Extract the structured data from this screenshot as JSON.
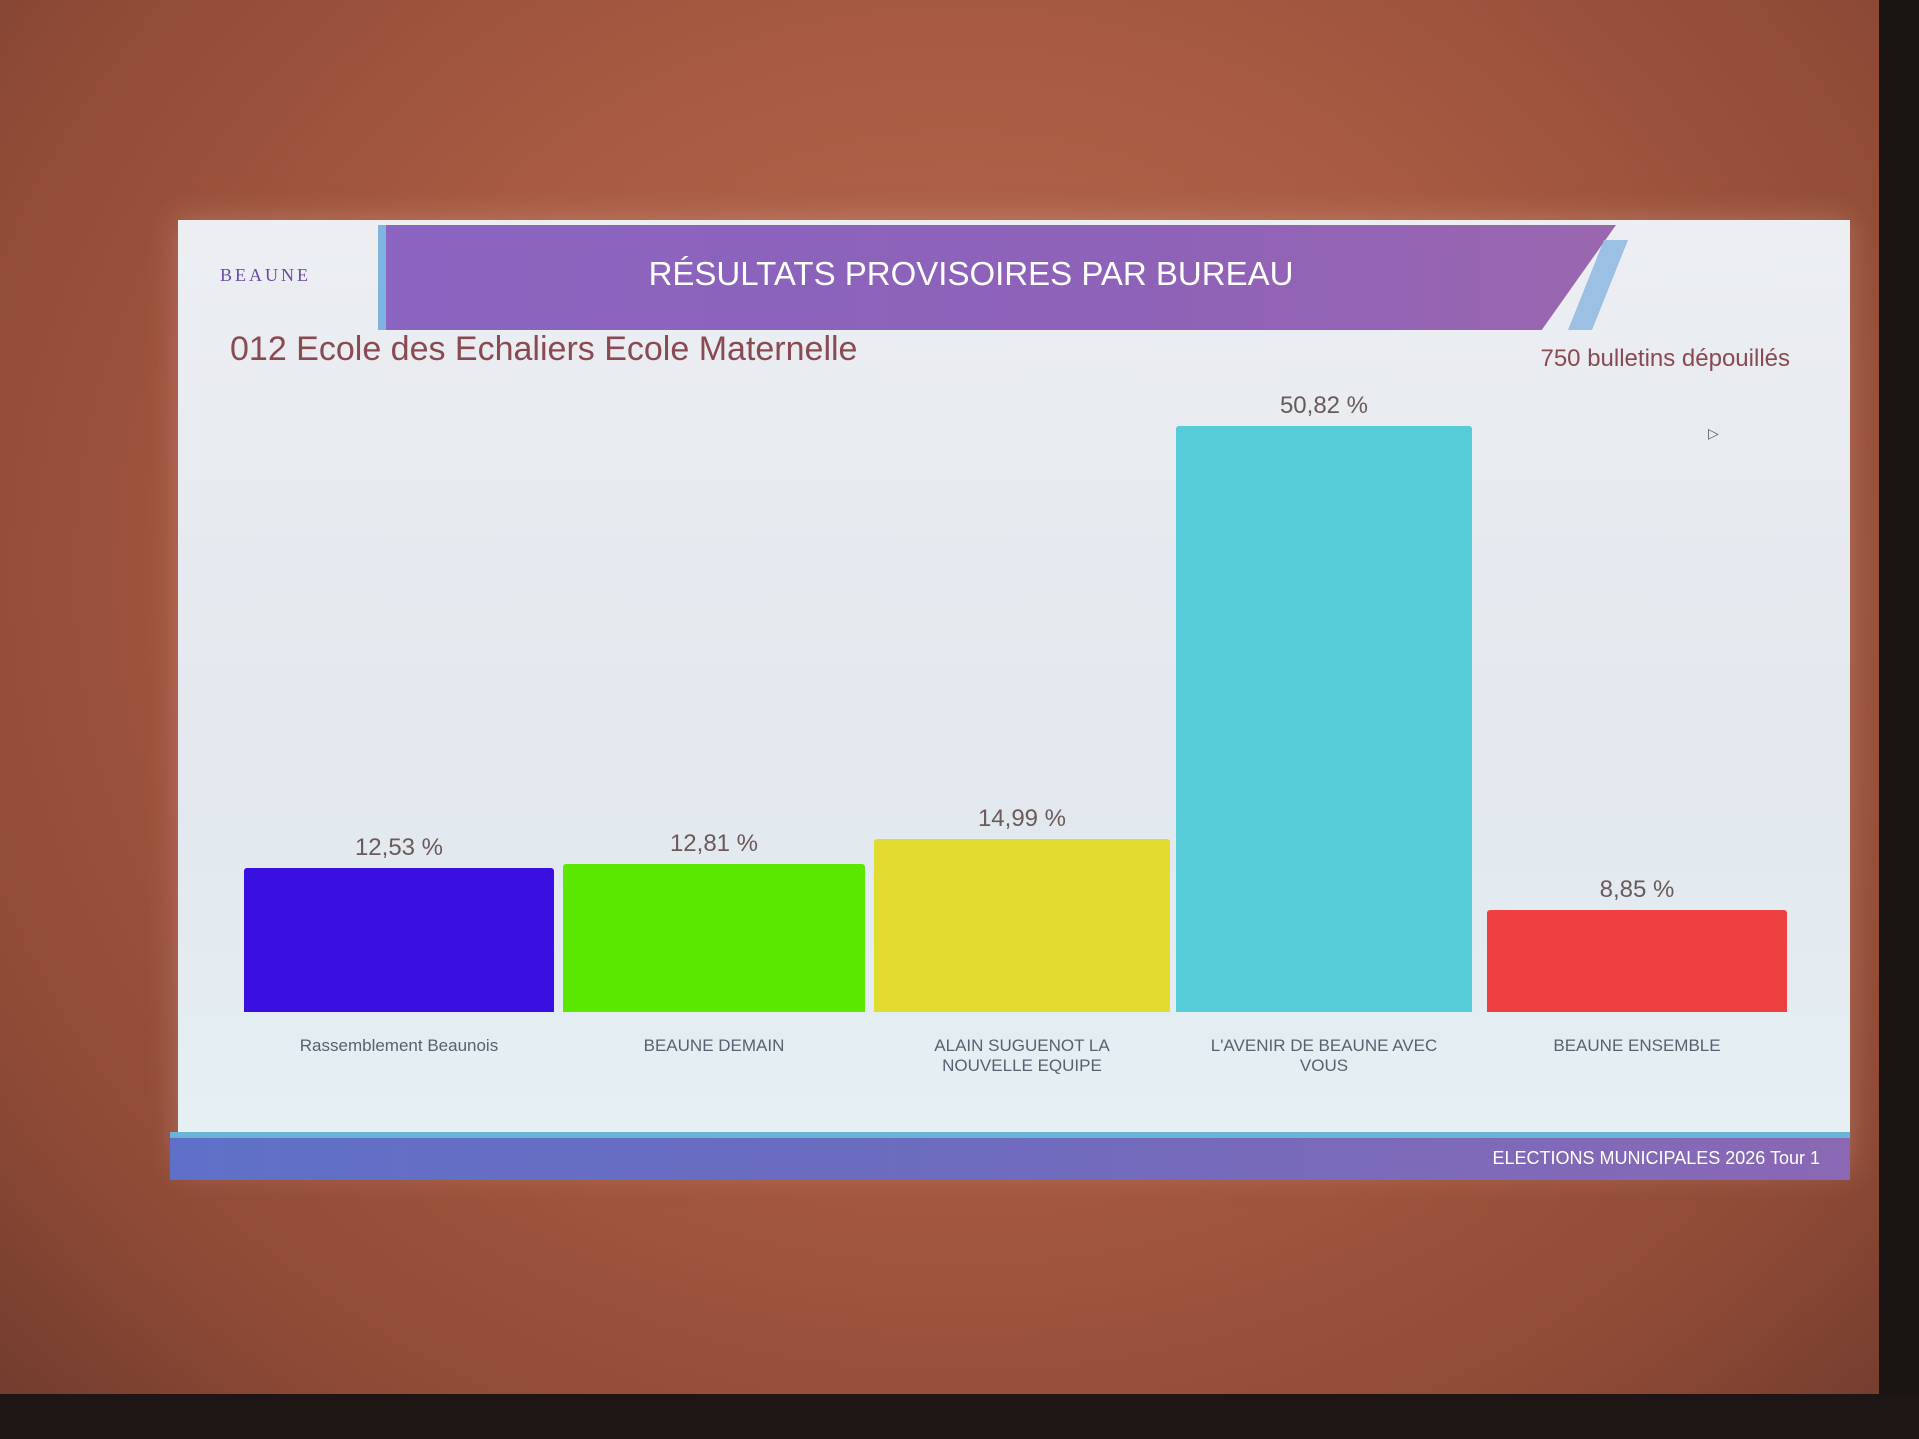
{
  "slide": {
    "logo": "BEAUNE",
    "title": "RÉSULTATS PROVISOIRES PAR BUREAU",
    "subtitle": "012 Ecole des Echaliers Ecole Maternelle",
    "ballots_counted": "750 bulletins dépouillés",
    "footer": "ELECTIONS MUNICIPALES 2026 Tour 1"
  },
  "chart_data": {
    "type": "bar",
    "title": "",
    "categories": [
      "Rassemblement Beaunois",
      "BEAUNE DEMAIN",
      "ALAIN SUGUENOT LA NOUVELLE EQUIPE",
      "L'AVENIR DE BEAUNE AVEC VOUS",
      "BEAUNE ENSEMBLE"
    ],
    "values": [
      12.53,
      12.81,
      14.99,
      50.82,
      8.85
    ],
    "value_labels": [
      "12,53 %",
      "12,81 %",
      "14,99 %",
      "50,82 %",
      "8,85 %"
    ],
    "colors": [
      "#3a10e0",
      "#5ae800",
      "#e2dc30",
      "#56ccd8",
      "#ee4040"
    ],
    "unit": "%",
    "grid": false,
    "legend": "none"
  }
}
